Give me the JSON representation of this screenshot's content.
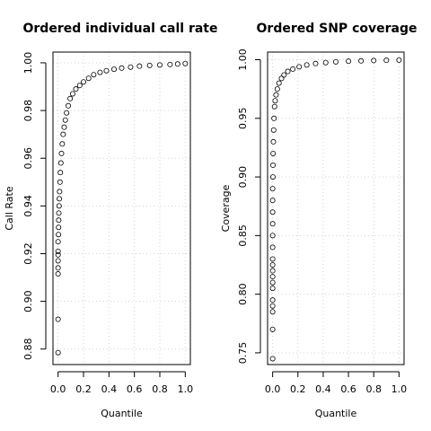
{
  "chart_data": [
    {
      "type": "scatter",
      "title": "Ordered individual call rate",
      "xlabel": "Quantile",
      "ylabel": "Call Rate",
      "xlim": [
        -0.04,
        1.04
      ],
      "ylim": [
        0.8735,
        1.0045
      ],
      "grid": true,
      "marker": "open-circle",
      "xticks": [
        "0.0",
        "0.2",
        "0.4",
        "0.6",
        "0.8",
        "1.0"
      ],
      "yticks": [
        "0.88",
        "0.90",
        "0.92",
        "0.94",
        "0.96",
        "0.98",
        "1.00"
      ],
      "points": [
        [
          0.0,
          0.8785
        ],
        [
          0.0,
          0.8925
        ],
        [
          0.0,
          0.9115
        ],
        [
          0.0,
          0.914
        ],
        [
          0.0,
          0.917
        ],
        [
          0.0,
          0.9195
        ],
        [
          0.0,
          0.921
        ],
        [
          0.0,
          0.925
        ],
        [
          0.003,
          0.928
        ],
        [
          0.004,
          0.931
        ],
        [
          0.005,
          0.934
        ],
        [
          0.006,
          0.937
        ],
        [
          0.008,
          0.94
        ],
        [
          0.01,
          0.943
        ],
        [
          0.012,
          0.946
        ],
        [
          0.015,
          0.95
        ],
        [
          0.018,
          0.954
        ],
        [
          0.022,
          0.958
        ],
        [
          0.027,
          0.962
        ],
        [
          0.033,
          0.966
        ],
        [
          0.04,
          0.97
        ],
        [
          0.048,
          0.973
        ],
        [
          0.057,
          0.976
        ],
        [
          0.067,
          0.979
        ],
        [
          0.08,
          0.982
        ],
        [
          0.095,
          0.985
        ],
        [
          0.115,
          0.987
        ],
        [
          0.14,
          0.989
        ],
        [
          0.17,
          0.9905
        ],
        [
          0.2,
          0.992
        ],
        [
          0.24,
          0.9935
        ],
        [
          0.28,
          0.995
        ],
        [
          0.33,
          0.996
        ],
        [
          0.38,
          0.9967
        ],
        [
          0.44,
          0.9973
        ],
        [
          0.5,
          0.9978
        ],
        [
          0.57,
          0.9982
        ],
        [
          0.64,
          0.9986
        ],
        [
          0.72,
          0.9989
        ],
        [
          0.8,
          0.9991
        ],
        [
          0.88,
          0.9993
        ],
        [
          0.94,
          0.9995
        ],
        [
          1.0,
          0.9997
        ]
      ]
    },
    {
      "type": "scatter",
      "title": "Ordered SNP coverage",
      "xlabel": "Quantile",
      "ylabel": "Coverage",
      "xlim": [
        -0.04,
        1.04
      ],
      "ylim": [
        0.74,
        1.0065
      ],
      "grid": true,
      "marker": "open-circle",
      "xticks": [
        "0.0",
        "0.2",
        "0.4",
        "0.6",
        "0.8",
        "1.0"
      ],
      "yticks": [
        "0.75",
        "0.80",
        "0.85",
        "0.90",
        "0.95",
        "1.00"
      ],
      "points": [
        [
          0.0,
          0.745
        ],
        [
          0.0,
          0.77
        ],
        [
          0.0,
          0.785
        ],
        [
          0.0,
          0.79
        ],
        [
          0.0,
          0.795
        ],
        [
          0.0,
          0.805
        ],
        [
          0.0,
          0.81
        ],
        [
          0.0,
          0.815
        ],
        [
          0.0,
          0.82
        ],
        [
          0.0,
          0.825
        ],
        [
          0.0,
          0.83
        ],
        [
          0.0,
          0.84
        ],
        [
          0.0,
          0.85
        ],
        [
          0.0,
          0.86
        ],
        [
          0.0,
          0.87
        ],
        [
          0.0,
          0.88
        ],
        [
          0.0,
          0.89
        ],
        [
          0.002,
          0.9
        ],
        [
          0.003,
          0.91
        ],
        [
          0.004,
          0.92
        ],
        [
          0.006,
          0.93
        ],
        [
          0.008,
          0.94
        ],
        [
          0.011,
          0.95
        ],
        [
          0.015,
          0.96
        ],
        [
          0.02,
          0.965
        ],
        [
          0.027,
          0.97
        ],
        [
          0.037,
          0.975
        ],
        [
          0.05,
          0.98
        ],
        [
          0.07,
          0.984
        ],
        [
          0.09,
          0.987
        ],
        [
          0.12,
          0.99
        ],
        [
          0.16,
          0.992
        ],
        [
          0.21,
          0.994
        ],
        [
          0.27,
          0.9955
        ],
        [
          0.34,
          0.9967
        ],
        [
          0.42,
          0.9975
        ],
        [
          0.5,
          0.9982
        ],
        [
          0.6,
          0.9987
        ],
        [
          0.7,
          0.999
        ],
        [
          0.8,
          0.9993
        ],
        [
          0.9,
          0.9995
        ],
        [
          1.0,
          0.9997
        ]
      ]
    }
  ]
}
